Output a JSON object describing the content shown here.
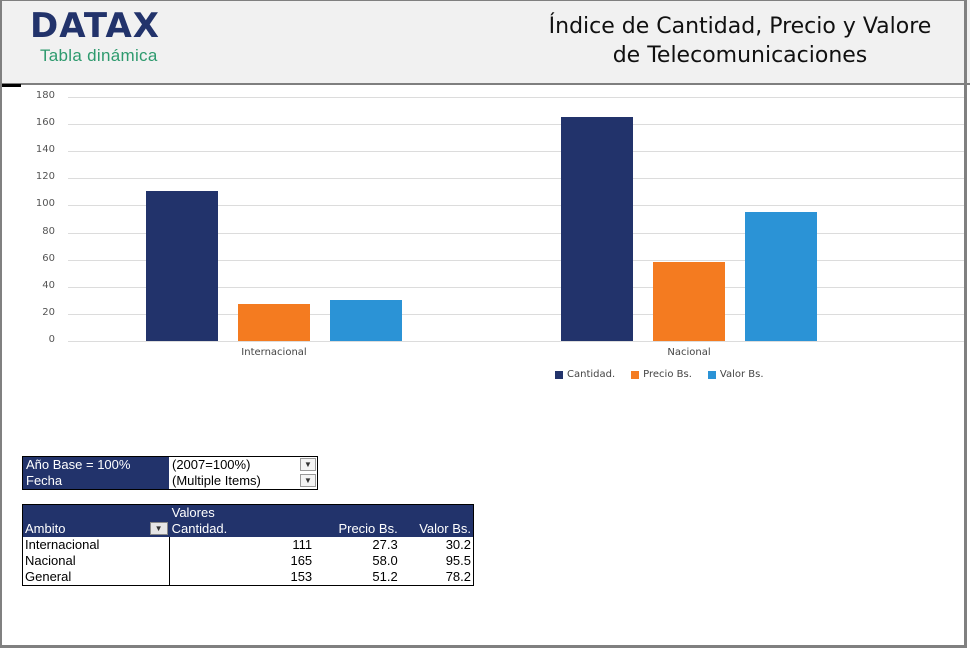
{
  "header": {
    "logo": "DATAX",
    "logo_subtitle": "Tabla dinámica",
    "title_line1": "Índice de Cantidad, Precio y Valore",
    "title_line2": "de Telecomunicaciones"
  },
  "colors": {
    "brand_navy": "#22336b",
    "cantidad": "#22336b",
    "precio": "#f47b20",
    "valor": "#2b93d6",
    "subtitle_green": "#2e9a6e"
  },
  "chart_data": {
    "type": "bar",
    "title": "",
    "categories": [
      "Internacional",
      "Nacional"
    ],
    "series": [
      {
        "name": "Cantidad.",
        "values": [
          111,
          165
        ]
      },
      {
        "name": "Precio Bs.",
        "values": [
          27.3,
          58.0
        ]
      },
      {
        "name": "Valor Bs.",
        "values": [
          30.2,
          95.5
        ]
      }
    ],
    "y_ticks": [
      "0",
      "20",
      "40",
      "60",
      "80",
      "100",
      "120",
      "140",
      "160",
      "180"
    ],
    "ylim": [
      0,
      180
    ],
    "grid": true,
    "legend_position": "bottom",
    "xlabel": "",
    "ylabel": ""
  },
  "legend": [
    {
      "label": "Cantidad."
    },
    {
      "label": "Precio Bs."
    },
    {
      "label": "Valor Bs."
    }
  ],
  "filters": [
    {
      "label": "Año Base = 100%",
      "value": "(2007=100%)",
      "icon": "filter-dropdown-icon"
    },
    {
      "label": "Fecha",
      "value": "(Multiple Items)",
      "icon": "filter-dropdown-icon"
    }
  ],
  "pivot": {
    "values_header": "Valores",
    "row_header": "Ambito",
    "columns": [
      "Cantidad.",
      "Precio Bs.",
      "Valor Bs."
    ],
    "rows": [
      {
        "label": "Internacional",
        "values": [
          "111",
          "27.3",
          "30.2"
        ]
      },
      {
        "label": "Nacional",
        "values": [
          "165",
          "58.0",
          "95.5"
        ]
      },
      {
        "label": "General",
        "values": [
          "153",
          "51.2",
          "78.2"
        ]
      }
    ]
  }
}
